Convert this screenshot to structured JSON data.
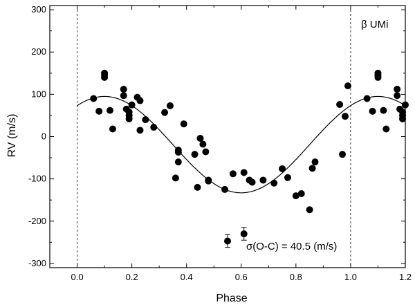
{
  "chart_data": {
    "type": "scatter",
    "title": "",
    "annotation_star": "β UMi",
    "annotation_sigma": "σ(O-C) = 40.5 (m/s)",
    "xlabel": "Phase",
    "ylabel": "RV (m/s)",
    "xlim": [
      -0.1,
      1.2
    ],
    "ylim": [
      -310,
      310
    ],
    "x_ticks": [
      0.0,
      0.2,
      0.4,
      0.6,
      0.8,
      1.0,
      1.2
    ],
    "x_tick_labels": [
      "0.0",
      "0.2",
      "0.4",
      "0.6",
      "0.8",
      "1.0",
      "1.2"
    ],
    "y_ticks": [
      -300,
      -200,
      -100,
      0,
      100,
      200,
      300
    ],
    "y_tick_labels": [
      "-300",
      "-200",
      "-100",
      "0",
      "100",
      "200",
      "300"
    ],
    "dashed_vlines": [
      0.0,
      1.0
    ],
    "fit_model": {
      "offset": -19,
      "amplitude": 114,
      "phase_of_max": 0.1,
      "note": "sinusoidal orbital fit"
    },
    "series": [
      {
        "name": "RV measurements",
        "marker": "filled-circle",
        "points": [
          [
            0.06,
            90
          ],
          [
            0.08,
            60
          ],
          [
            0.1,
            150
          ],
          [
            0.1,
            145
          ],
          [
            0.1,
            140
          ],
          [
            0.12,
            62
          ],
          [
            0.13,
            18
          ],
          [
            0.17,
            112
          ],
          [
            0.17,
            97
          ],
          [
            0.18,
            65
          ],
          [
            0.19,
            58
          ],
          [
            0.19,
            50
          ],
          [
            0.19,
            42
          ],
          [
            0.2,
            75
          ],
          [
            0.22,
            93
          ],
          [
            0.23,
            85
          ],
          [
            0.23,
            15
          ],
          [
            0.25,
            40
          ],
          [
            0.28,
            22
          ],
          [
            0.32,
            57
          ],
          [
            0.34,
            73
          ],
          [
            0.36,
            -98
          ],
          [
            0.37,
            -60
          ],
          [
            0.37,
            -37
          ],
          [
            0.37,
            -32
          ],
          [
            0.39,
            30
          ],
          [
            0.43,
            -42
          ],
          [
            0.44,
            -120
          ],
          [
            0.45,
            -4
          ],
          [
            0.46,
            -18
          ],
          [
            0.47,
            -36
          ],
          [
            0.48,
            -103
          ],
          [
            0.48,
            -105
          ],
          [
            0.54,
            -125
          ],
          [
            0.57,
            -88
          ],
          [
            0.61,
            -85
          ],
          [
            0.63,
            -103
          ],
          [
            0.64,
            -108
          ],
          [
            0.68,
            -103
          ],
          [
            0.72,
            -110
          ],
          [
            0.75,
            -76
          ],
          [
            0.77,
            -97
          ],
          [
            0.8,
            -140
          ],
          [
            0.82,
            -135
          ],
          [
            0.85,
            -173
          ],
          [
            0.86,
            -75
          ],
          [
            0.87,
            -60
          ],
          [
            0.96,
            76
          ],
          [
            0.97,
            -42
          ],
          [
            0.98,
            48
          ],
          [
            0.99,
            120
          ],
          [
            1.06,
            90
          ],
          [
            1.08,
            60
          ],
          [
            1.1,
            150
          ],
          [
            1.1,
            145
          ],
          [
            1.1,
            140
          ],
          [
            1.12,
            62
          ],
          [
            1.13,
            18
          ],
          [
            1.17,
            112
          ],
          [
            1.17,
            97
          ],
          [
            1.18,
            65
          ],
          [
            1.19,
            58
          ],
          [
            1.19,
            50
          ],
          [
            1.19,
            42
          ],
          [
            1.2,
            75
          ]
        ]
      },
      {
        "name": "error-bar legend points",
        "marker": "filled-circle-errorbar",
        "points": [
          [
            0.55,
            -247,
            15
          ],
          [
            0.61,
            -230,
            15
          ]
        ]
      }
    ]
  }
}
